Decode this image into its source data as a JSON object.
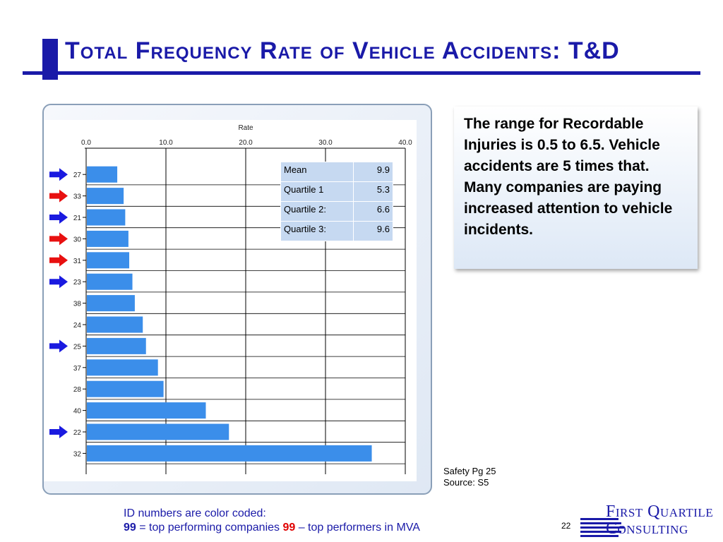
{
  "slide": {
    "title": "Total Frequency Rate of Vehicle Accidents: T&D",
    "page_number": "22",
    "accent_color": "#1a1aa8"
  },
  "callout": {
    "text": "The range for Recordable Injuries is 0.5 to 6.5. Vehicle accidents are 5 times that. Many companies are paying increased attention to vehicle incidents."
  },
  "stats_table": [
    {
      "label": "Mean",
      "value": "9.9"
    },
    {
      "label": "Quartile 1",
      "value": "5.3"
    },
    {
      "label": "Quartile 2:",
      "value": "6.6"
    },
    {
      "label": "Quartile 3:",
      "value": "9.6"
    }
  ],
  "source": {
    "line1": "Safety Pg 25",
    "line2": "Source: S5"
  },
  "note": {
    "line1": "ID numbers are color coded:",
    "blue_id": "99",
    "blue_text": " = top performing companies ",
    "red_id": "99",
    "red_text": " – top performers in MVA",
    "blue_color": "#1a1aa8",
    "red_color": "#e00000"
  },
  "logo": {
    "word1": "First Quartile",
    "word2": "Consulting"
  },
  "chart_data": {
    "type": "bar",
    "orientation": "horizontal",
    "xlabel": "Rate",
    "xlim": [
      0,
      40
    ],
    "xticks": [
      "0.0",
      "10.0",
      "20.0",
      "30.0",
      "40.0"
    ],
    "grid": true,
    "bar_color": "#3b8eea",
    "categories": [
      "27",
      "33",
      "21",
      "30",
      "31",
      "23",
      "38",
      "24",
      "25",
      "37",
      "28",
      "40",
      "22",
      "32"
    ],
    "values": [
      3.9,
      4.7,
      4.9,
      5.3,
      5.4,
      5.8,
      6.1,
      7.1,
      7.5,
      9.0,
      9.7,
      15.0,
      17.9,
      35.8
    ],
    "markers": [
      "blue",
      "red",
      "blue",
      "red",
      "red",
      "blue",
      "",
      "",
      "blue",
      "",
      "",
      "",
      "blue",
      ""
    ],
    "marker_colors": {
      "blue": "#1a1ae0",
      "red": "#e81010"
    }
  }
}
